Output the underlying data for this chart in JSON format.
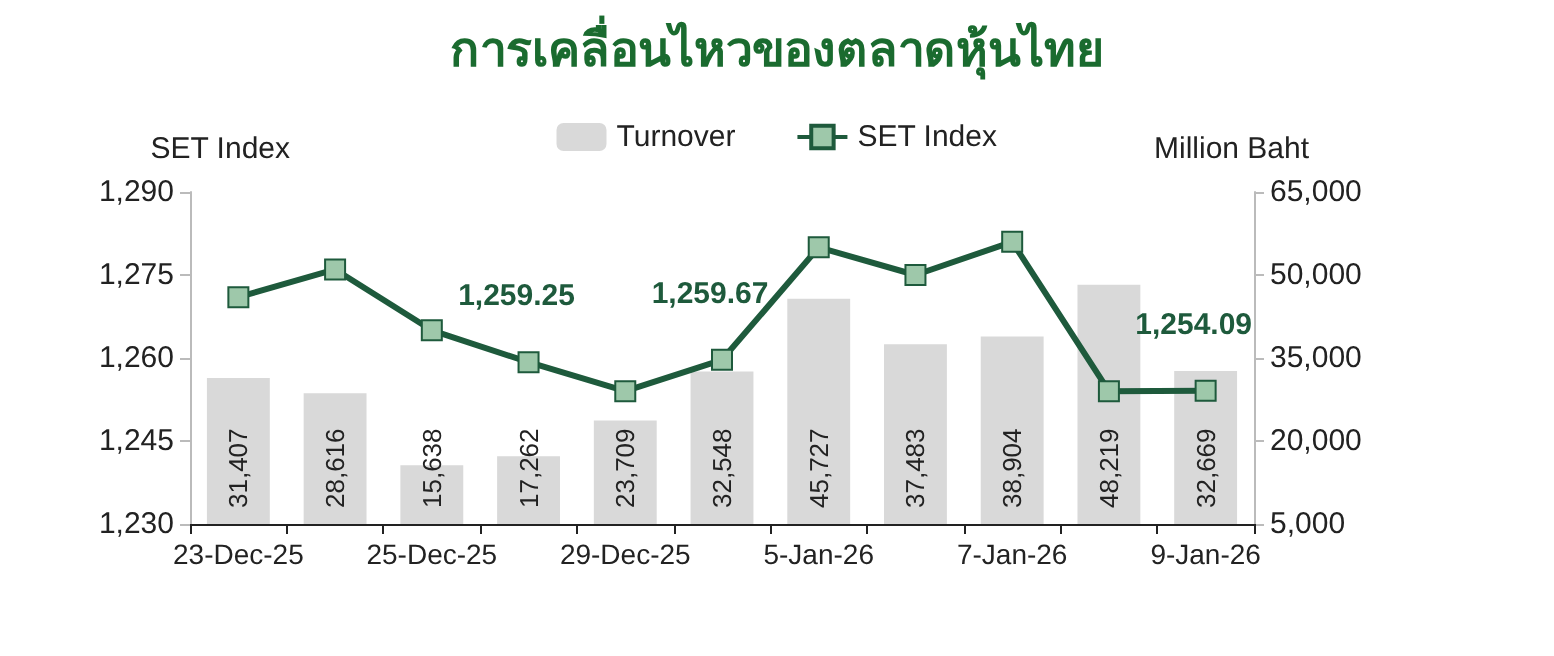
{
  "chart_data": {
    "type": "line",
    "title": "การเคลื่อนไหวของตลาดหุ้นไทย",
    "ylabel": "SET Index",
    "y2label": "Million Baht",
    "categories": [
      "23-Dec-25",
      null,
      "25-Dec-25",
      null,
      "29-Dec-25",
      null,
      "5-Jan-26",
      null,
      "7-Jan-26",
      null,
      "9-Jan-26"
    ],
    "series": [
      {
        "name": "Turnover",
        "type": "bar",
        "axis": "y2",
        "color": "#d9d9d9",
        "values": [
          31407,
          28616,
          15638,
          17262,
          23709,
          32548,
          45727,
          37483,
          38904,
          48219,
          32669
        ],
        "value_labels": [
          "31,407",
          "28,616",
          "15,638",
          "17,262",
          "23,709",
          "32,548",
          "45,727",
          "37,483",
          "38,904",
          "48,219",
          "32,669"
        ]
      },
      {
        "name": "SET Index",
        "color": "#1e5a3c",
        "marker": "square",
        "values": [
          1271,
          1276,
          1265,
          1259.25,
          1254,
          1259.67,
          1280,
          1275,
          1281,
          1254,
          1254.09
        ],
        "value_labels": [
          null,
          null,
          null,
          "1,259.25",
          null,
          "1,259.67",
          null,
          null,
          null,
          null,
          "1,254.09"
        ]
      }
    ],
    "ylim": [
      1230,
      1290
    ],
    "yticks": [
      {
        "value": 1230,
        "label": "1,230"
      },
      {
        "value": 1245,
        "label": "1,245"
      },
      {
        "value": 1260,
        "label": "1,260"
      },
      {
        "value": 1275,
        "label": "1,275"
      },
      {
        "value": 1290,
        "label": "1,290"
      }
    ],
    "y2lim": [
      5000,
      65000
    ],
    "y2ticks": [
      {
        "value": 5000,
        "label": "5,000"
      },
      {
        "value": 20000,
        "label": "20,000"
      },
      {
        "value": 35000,
        "label": "35,000"
      },
      {
        "value": 50000,
        "label": "50,000"
      },
      {
        "value": 65000,
        "label": "65,000"
      }
    ],
    "grid": false,
    "legend": "top"
  }
}
